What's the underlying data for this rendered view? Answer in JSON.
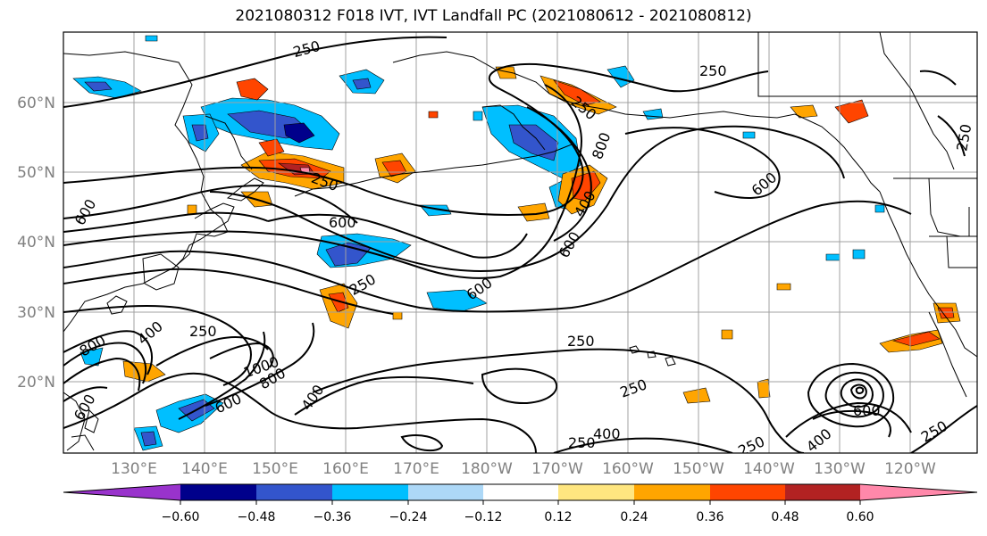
{
  "title": "2021080312 F018 IVT, IVT Landfall PC (2021080612 - 2021080812)",
  "map": {
    "lat_ticks": [
      "60°N",
      "50°N",
      "40°N",
      "30°N",
      "20°N"
    ],
    "lon_ticks": [
      "130°E",
      "140°E",
      "150°E",
      "160°E",
      "170°E",
      "180°W",
      "170°W",
      "160°W",
      "150°W",
      "140°W",
      "130°W",
      "120°W"
    ],
    "contour_labels": [
      {
        "text": "250"
      },
      {
        "text": "250"
      },
      {
        "text": "250"
      },
      {
        "text": "250"
      },
      {
        "text": "250"
      },
      {
        "text": "250"
      },
      {
        "text": "250"
      },
      {
        "text": "250"
      },
      {
        "text": "250"
      },
      {
        "text": "250"
      },
      {
        "text": "250"
      },
      {
        "text": "400"
      },
      {
        "text": "400"
      },
      {
        "text": "400"
      },
      {
        "text": "400"
      },
      {
        "text": "600"
      },
      {
        "text": "600"
      },
      {
        "text": "600"
      },
      {
        "text": "600"
      },
      {
        "text": "600"
      },
      {
        "text": "600"
      },
      {
        "text": "600"
      },
      {
        "text": "800"
      },
      {
        "text": "800"
      },
      {
        "text": "800"
      },
      {
        "text": "1000"
      },
      {
        "text": "250"
      },
      {
        "text": "400"
      },
      {
        "text": "600"
      }
    ]
  },
  "colorbar": {
    "colors": [
      "#9933cc",
      "#00008b",
      "#3355cc",
      "#00bfff",
      "#add8f7",
      "#ffffff",
      "#ffe680",
      "#ffa500",
      "#ff4500",
      "#b22222",
      "#ff88aa"
    ],
    "labels": [
      "−0.60",
      "−0.48",
      "−0.36",
      "−0.24",
      "−0.12",
      "0.12",
      "0.24",
      "0.36",
      "0.48",
      "0.60"
    ]
  }
}
